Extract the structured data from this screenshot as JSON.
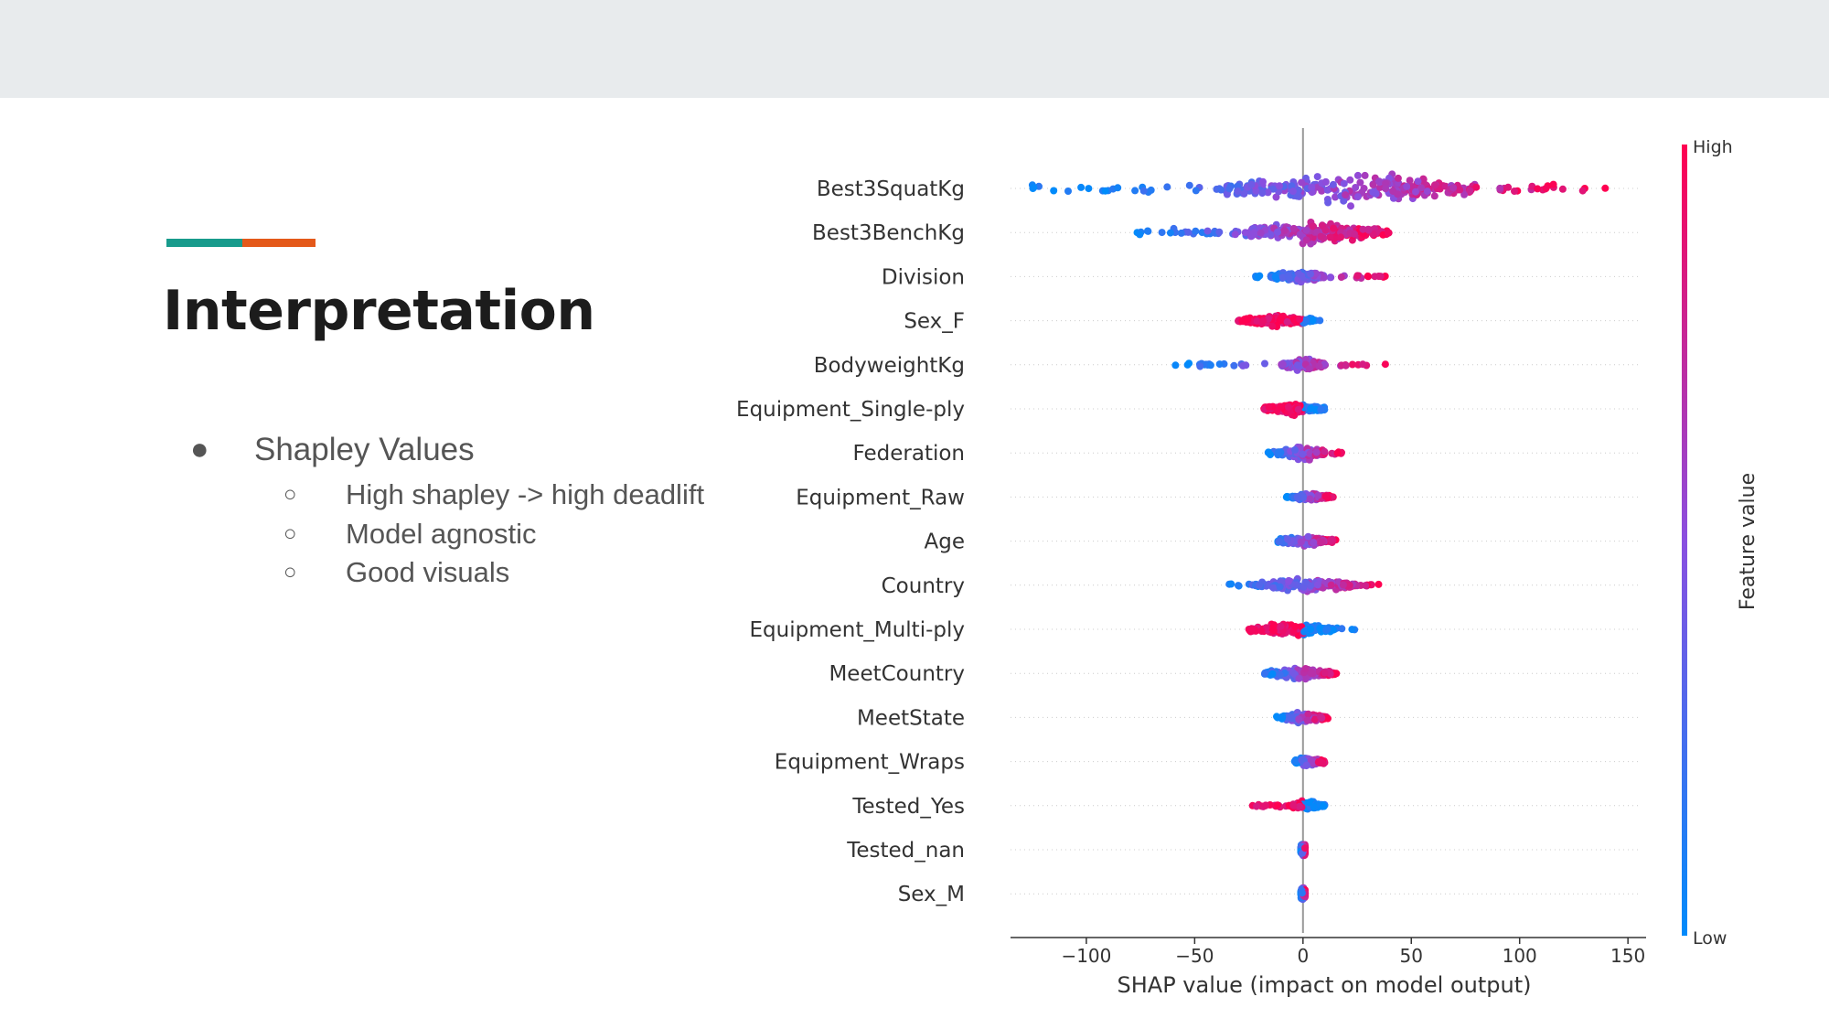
{
  "slide": {
    "title": "Interpretation",
    "bullet": "Shapley Values",
    "sub_bullets": [
      "High shapley -> high deadlift",
      "Model agnostic",
      "Good visuals"
    ],
    "bullet_glyph": "●",
    "sub_bullet_glyph": "○",
    "colors": {
      "accent_teal": "#189b8c",
      "accent_orange": "#e4591a",
      "band": "#e8ebed"
    }
  },
  "chart_data": {
    "type": "scatter",
    "subtype": "shap-beeswarm-summary",
    "title": "",
    "xlabel": "SHAP value (impact on model output)",
    "xlim": [
      -135,
      155
    ],
    "xticks": [
      -100,
      -50,
      0,
      50,
      100,
      150
    ],
    "xtick_labels": [
      "−100",
      "−50",
      "0",
      "50",
      "100",
      "150"
    ],
    "features": [
      {
        "name": "Best3SquatKg",
        "min": -125,
        "max": 140,
        "spread": 1.0,
        "dense": [
          -40,
          80
        ]
      },
      {
        "name": "Best3BenchKg",
        "min": -77,
        "max": 42,
        "spread": 0.85,
        "dense": [
          -25,
          35
        ]
      },
      {
        "name": "Division",
        "min": -22,
        "max": 38,
        "spread": 0.45,
        "dense": [
          -15,
          10
        ]
      },
      {
        "name": "Sex_F",
        "min": -32,
        "max": 10,
        "spread": 0.4,
        "dense": [
          -30,
          5
        ]
      },
      {
        "name": "BodyweightKg",
        "min": -62,
        "max": 44,
        "spread": 0.45,
        "dense": [
          -10,
          10
        ]
      },
      {
        "name": "Equipment_Single-ply",
        "min": -18,
        "max": 10,
        "spread": 0.45,
        "dense": [
          -18,
          10
        ]
      },
      {
        "name": "Federation",
        "min": -20,
        "max": 18,
        "spread": 0.5,
        "dense": [
          -10,
          10
        ]
      },
      {
        "name": "Equipment_Raw",
        "min": -8,
        "max": 14,
        "spread": 0.3,
        "dense": [
          -5,
          12
        ]
      },
      {
        "name": "Age",
        "min": -15,
        "max": 16,
        "spread": 0.4,
        "dense": [
          -12,
          14
        ]
      },
      {
        "name": "Country",
        "min": -35,
        "max": 38,
        "spread": 0.5,
        "dense": [
          -22,
          25
        ]
      },
      {
        "name": "Equipment_Multi-ply",
        "min": -25,
        "max": 25,
        "spread": 0.45,
        "dense": [
          -25,
          15
        ]
      },
      {
        "name": "MeetCountry",
        "min": -20,
        "max": 16,
        "spread": 0.4,
        "dense": [
          -18,
          15
        ]
      },
      {
        "name": "MeetState",
        "min": -14,
        "max": 12,
        "spread": 0.35,
        "dense": [
          -10,
          10
        ]
      },
      {
        "name": "Equipment_Wraps",
        "min": -4,
        "max": 10,
        "spread": 0.3,
        "dense": [
          -4,
          10
        ]
      },
      {
        "name": "Tested_Yes",
        "min": -24,
        "max": 10,
        "spread": 0.35,
        "dense": [
          -5,
          10
        ]
      },
      {
        "name": "Tested_nan",
        "min": -1,
        "max": 1,
        "spread": 0.45,
        "dense": [
          -1,
          1
        ]
      },
      {
        "name": "Sex_M",
        "min": -1,
        "max": 1,
        "spread": 0.45,
        "dense": [
          -1,
          1
        ]
      }
    ],
    "colorbar": {
      "label": "Feature value",
      "high": "High",
      "low": "Low",
      "high_color": "#ff0051",
      "low_color": "#008bfb"
    },
    "grid": false,
    "legend": "colorbar-right"
  }
}
